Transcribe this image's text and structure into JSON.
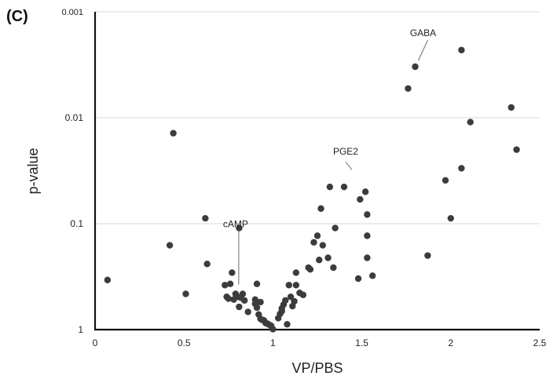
{
  "panel_label": "(C)",
  "chart_data": {
    "type": "scatter",
    "xlabel": "VP/PBS",
    "ylabel": "p-value",
    "xlim": [
      0,
      2.5
    ],
    "ylim": [
      1,
      0.001
    ],
    "y_scale": "log-reversed",
    "grid": "horizontal",
    "x_ticks": [
      "0",
      "0.5",
      "1",
      "1.5",
      "2",
      "2.5"
    ],
    "x_tick_values": [
      0,
      0.5,
      1,
      1.5,
      2,
      2.5
    ],
    "y_ticks": [
      "0.001",
      "0.01",
      "0.1",
      "1"
    ],
    "y_tick_values": [
      0.001,
      0.01,
      0.1,
      1
    ],
    "points": [
      {
        "x": 0.07,
        "y": 0.34
      },
      {
        "x": 0.42,
        "y": 0.16
      },
      {
        "x": 0.44,
        "y": 0.014
      },
      {
        "x": 0.51,
        "y": 0.46
      },
      {
        "x": 0.62,
        "y": 0.089
      },
      {
        "x": 0.63,
        "y": 0.24
      },
      {
        "x": 0.73,
        "y": 0.38
      },
      {
        "x": 0.74,
        "y": 0.49
      },
      {
        "x": 0.75,
        "y": 0.51
      },
      {
        "x": 0.76,
        "y": 0.37
      },
      {
        "x": 0.77,
        "y": 0.29
      },
      {
        "x": 0.78,
        "y": 0.52
      },
      {
        "x": 0.79,
        "y": 0.46
      },
      {
        "x": 0.8,
        "y": 0.49
      },
      {
        "x": 0.81,
        "y": 0.11
      },
      {
        "x": 0.81,
        "y": 0.61
      },
      {
        "x": 0.82,
        "y": 0.5
      },
      {
        "x": 0.83,
        "y": 0.46
      },
      {
        "x": 0.84,
        "y": 0.53
      },
      {
        "x": 0.86,
        "y": 0.68
      },
      {
        "x": 0.9,
        "y": 0.52
      },
      {
        "x": 0.9,
        "y": 0.57
      },
      {
        "x": 0.91,
        "y": 0.37
      },
      {
        "x": 0.91,
        "y": 0.62
      },
      {
        "x": 0.92,
        "y": 0.72
      },
      {
        "x": 0.93,
        "y": 0.55
      },
      {
        "x": 0.93,
        "y": 0.79
      },
      {
        "x": 0.94,
        "y": 0.81
      },
      {
        "x": 0.95,
        "y": 0.82
      },
      {
        "x": 0.96,
        "y": 0.87
      },
      {
        "x": 0.97,
        "y": 0.88
      },
      {
        "x": 0.98,
        "y": 0.9
      },
      {
        "x": 0.99,
        "y": 0.92
      },
      {
        "x": 1.0,
        "y": 0.99
      },
      {
        "x": 1.03,
        "y": 0.78
      },
      {
        "x": 1.04,
        "y": 0.71
      },
      {
        "x": 1.05,
        "y": 0.63
      },
      {
        "x": 1.05,
        "y": 0.67
      },
      {
        "x": 1.06,
        "y": 0.58
      },
      {
        "x": 1.07,
        "y": 0.53
      },
      {
        "x": 1.08,
        "y": 0.89
      },
      {
        "x": 1.09,
        "y": 0.38
      },
      {
        "x": 1.1,
        "y": 0.49
      },
      {
        "x": 1.11,
        "y": 0.6
      },
      {
        "x": 1.12,
        "y": 0.54
      },
      {
        "x": 1.13,
        "y": 0.38
      },
      {
        "x": 1.13,
        "y": 0.29
      },
      {
        "x": 1.15,
        "y": 0.45
      },
      {
        "x": 1.17,
        "y": 0.47
      },
      {
        "x": 1.2,
        "y": 0.26
      },
      {
        "x": 1.21,
        "y": 0.27
      },
      {
        "x": 1.23,
        "y": 0.15
      },
      {
        "x": 1.25,
        "y": 0.13
      },
      {
        "x": 1.26,
        "y": 0.22
      },
      {
        "x": 1.27,
        "y": 0.072
      },
      {
        "x": 1.28,
        "y": 0.16
      },
      {
        "x": 1.31,
        "y": 0.21
      },
      {
        "x": 1.32,
        "y": 0.045
      },
      {
        "x": 1.34,
        "y": 0.26
      },
      {
        "x": 1.35,
        "y": 0.11
      },
      {
        "x": 1.4,
        "y": 0.045
      },
      {
        "x": 1.48,
        "y": 0.33
      },
      {
        "x": 1.49,
        "y": 0.059
      },
      {
        "x": 1.52,
        "y": 0.05
      },
      {
        "x": 1.53,
        "y": 0.21
      },
      {
        "x": 1.53,
        "y": 0.082
      },
      {
        "x": 1.53,
        "y": 0.13
      },
      {
        "x": 1.56,
        "y": 0.31
      },
      {
        "x": 1.76,
        "y": 0.0053
      },
      {
        "x": 1.8,
        "y": 0.0033
      },
      {
        "x": 1.87,
        "y": 0.2
      },
      {
        "x": 1.97,
        "y": 0.039
      },
      {
        "x": 2.0,
        "y": 0.089
      },
      {
        "x": 2.06,
        "y": 0.0023
      },
      {
        "x": 2.06,
        "y": 0.03
      },
      {
        "x": 2.11,
        "y": 0.011
      },
      {
        "x": 2.34,
        "y": 0.008
      },
      {
        "x": 2.37,
        "y": 0.02
      }
    ],
    "annotations": [
      {
        "text": "GABA",
        "x": 1.8,
        "y": 0.0033
      },
      {
        "text": "PGE2",
        "x": 1.4,
        "y": 0.045
      },
      {
        "text": "cAMP",
        "x": 0.79,
        "y": 0.46
      }
    ]
  }
}
